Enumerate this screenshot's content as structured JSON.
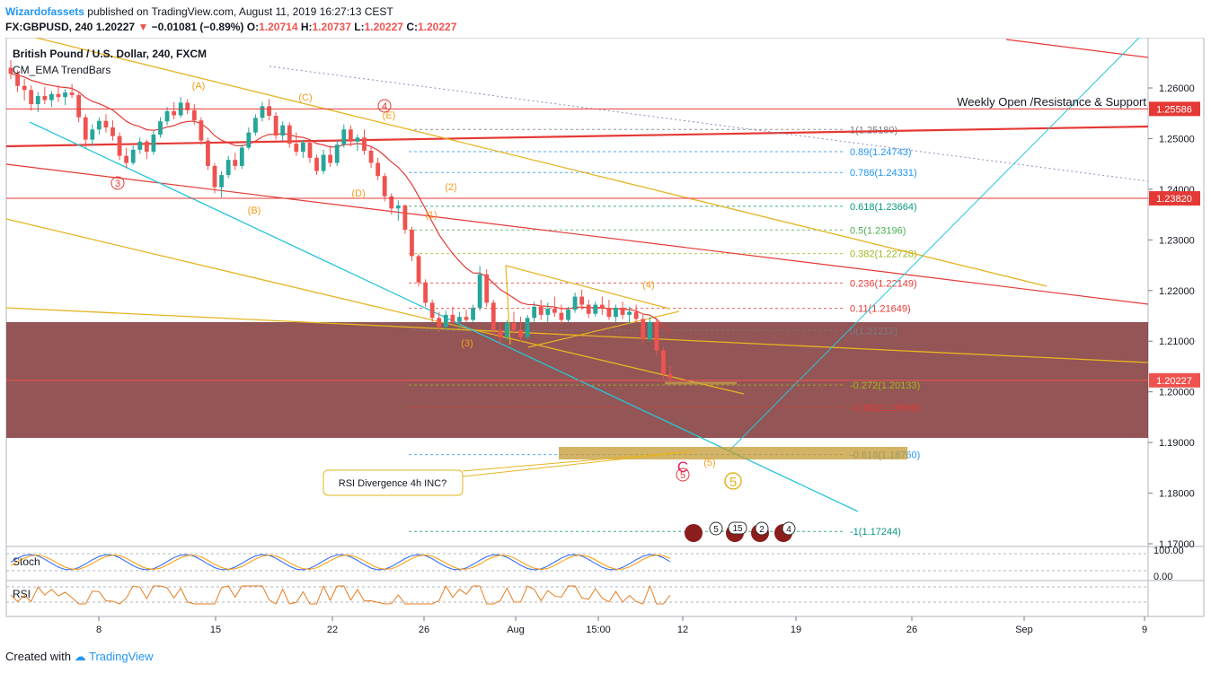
{
  "header": {
    "author": "Wizardofassets",
    "published_text": "published on TradingView.com, August 11, 2019 16:27:13 CEST",
    "symbol": "FX:GBPUSD, 240",
    "last": "1.20227",
    "change": "−0.01081 (−0.89%)",
    "ohlc": {
      "o_label": "O:",
      "o": "1.20714",
      "h_label": "H:",
      "h": "1.20737",
      "l_label": "L:",
      "l": "1.20227",
      "c_label": "C:",
      "c": "1.20227"
    }
  },
  "legend": {
    "title": "British Pound / U.S. Dollar, 240, FXCM",
    "indicator": "CM_EMA TrendBars"
  },
  "footer": {
    "created_with": "Created with",
    "brand": "TradingView"
  },
  "colors": {
    "bull": "#26a69a",
    "bear": "#ef5350",
    "ema": "#e53935",
    "wave": "#f59d1a",
    "trend": "#e6b422",
    "cyan": "#26c6da",
    "zone": "#7b2f2f"
  },
  "chart_data": {
    "type": "candlestick",
    "y_axis": {
      "min": 1.165,
      "max": 1.27,
      "ticks": [
        "1.26000",
        "1.25000",
        "1.24000",
        "1.23000",
        "1.22000",
        "1.21000",
        "1.20000",
        "1.19000",
        "1.18000",
        "1.17000"
      ]
    },
    "x_axis": {
      "ticks": [
        "8",
        "15",
        "22",
        "26",
        "Aug",
        "15:00",
        "12",
        "19",
        "26",
        "Sep",
        "9"
      ]
    },
    "price_labels": [
      {
        "value": 1.25586,
        "text": "1.25586",
        "color": "#e53935"
      },
      {
        "value": 1.2382,
        "text": "1.23820",
        "color": "#e53935"
      },
      {
        "value": 1.20227,
        "text": "1.20227",
        "color": "#ef5350"
      }
    ],
    "fib_levels": [
      {
        "value": 1.2518,
        "text": "1(1.25180)",
        "color": "#787b86"
      },
      {
        "value": 1.24743,
        "text": "0.89(1.24743)",
        "color": "#2196f3"
      },
      {
        "value": 1.24331,
        "text": "0.786(1.24331)",
        "color": "#2196f3"
      },
      {
        "value": 1.23664,
        "text": "0.618(1.23664)",
        "color": "#089981"
      },
      {
        "value": 1.23196,
        "text": "0.5(1.23196)",
        "color": "#4caf50"
      },
      {
        "value": 1.22728,
        "text": "0.382(1.22728)",
        "color": "#9cba1e"
      },
      {
        "value": 1.22149,
        "text": "0.236(1.22149)",
        "color": "#e53935"
      },
      {
        "value": 1.21649,
        "text": "0.11(1.21649)",
        "color": "#e53935"
      },
      {
        "value": 1.21212,
        "text": "0(1.21212)",
        "color": "#787b86"
      },
      {
        "value": 1.20133,
        "text": "-0.272(1.20133)",
        "color": "#9cba1e"
      },
      {
        "value": 1.19696,
        "text": "-0.382(1.19696)",
        "color": "#e53935"
      },
      {
        "value": 1.1876,
        "text": "-0.618(1.18760)",
        "color": "#2196f3"
      },
      {
        "value": 1.17244,
        "text": "-1(1.17244)",
        "color": "#089981"
      }
    ],
    "wave_labels": [
      "(A)",
      "(B)",
      "(C)",
      "(D)",
      "(E)",
      "(1)",
      "(2)",
      "(3)",
      "(4)",
      "(5)",
      "3",
      "4",
      "5",
      "5",
      "C"
    ],
    "annotations": {
      "weekly": "Weekly Open /Resistance & Support",
      "rsi_note": "RSI Divergence 4h INC?"
    },
    "events": [
      "5",
      "15",
      "2",
      "4"
    ],
    "candles": [
      {
        "o": 1.264,
        "h": 1.2655,
        "l": 1.2618,
        "c": 1.2628
      },
      {
        "o": 1.2628,
        "h": 1.2635,
        "l": 1.2592,
        "c": 1.2604
      },
      {
        "o": 1.2604,
        "h": 1.2618,
        "l": 1.2575,
        "c": 1.2596
      },
      {
        "o": 1.2596,
        "h": 1.2605,
        "l": 1.2555,
        "c": 1.2568
      },
      {
        "o": 1.2568,
        "h": 1.2592,
        "l": 1.2552,
        "c": 1.2584
      },
      {
        "o": 1.2584,
        "h": 1.2602,
        "l": 1.2568,
        "c": 1.2576
      },
      {
        "o": 1.2576,
        "h": 1.2594,
        "l": 1.2562,
        "c": 1.2588
      },
      {
        "o": 1.2588,
        "h": 1.2606,
        "l": 1.2572,
        "c": 1.2582
      },
      {
        "o": 1.2582,
        "h": 1.2598,
        "l": 1.2566,
        "c": 1.2591
      },
      {
        "o": 1.2591,
        "h": 1.2608,
        "l": 1.258,
        "c": 1.2586
      },
      {
        "o": 1.2586,
        "h": 1.259,
        "l": 1.2532,
        "c": 1.2542
      },
      {
        "o": 1.2542,
        "h": 1.2548,
        "l": 1.2482,
        "c": 1.2498
      },
      {
        "o": 1.2498,
        "h": 1.2528,
        "l": 1.2486,
        "c": 1.2518
      },
      {
        "o": 1.2518,
        "h": 1.2542,
        "l": 1.2508,
        "c": 1.2535
      },
      {
        "o": 1.2535,
        "h": 1.2548,
        "l": 1.2512,
        "c": 1.2522
      },
      {
        "o": 1.2522,
        "h": 1.2536,
        "l": 1.2496,
        "c": 1.2505
      },
      {
        "o": 1.2505,
        "h": 1.2512,
        "l": 1.2458,
        "c": 1.2466
      },
      {
        "o": 1.2466,
        "h": 1.2482,
        "l": 1.2442,
        "c": 1.2452
      },
      {
        "o": 1.2452,
        "h": 1.2486,
        "l": 1.2448,
        "c": 1.2478
      },
      {
        "o": 1.2478,
        "h": 1.2502,
        "l": 1.247,
        "c": 1.2494
      },
      {
        "o": 1.2494,
        "h": 1.2498,
        "l": 1.246,
        "c": 1.2474
      },
      {
        "o": 1.2474,
        "h": 1.2516,
        "l": 1.2468,
        "c": 1.2508
      },
      {
        "o": 1.2508,
        "h": 1.2542,
        "l": 1.2502,
        "c": 1.2534
      },
      {
        "o": 1.2534,
        "h": 1.2562,
        "l": 1.2526,
        "c": 1.2554
      },
      {
        "o": 1.2554,
        "h": 1.2572,
        "l": 1.2538,
        "c": 1.2546
      },
      {
        "o": 1.2546,
        "h": 1.2582,
        "l": 1.2541,
        "c": 1.2571
      },
      {
        "o": 1.2571,
        "h": 1.2578,
        "l": 1.2548,
        "c": 1.2556
      },
      {
        "o": 1.2556,
        "h": 1.2568,
        "l": 1.2528,
        "c": 1.2536
      },
      {
        "o": 1.2536,
        "h": 1.2542,
        "l": 1.2488,
        "c": 1.2496
      },
      {
        "o": 1.2496,
        "h": 1.2502,
        "l": 1.2438,
        "c": 1.2446
      },
      {
        "o": 1.2446,
        "h": 1.2452,
        "l": 1.2392,
        "c": 1.2404
      },
      {
        "o": 1.2404,
        "h": 1.2436,
        "l": 1.2384,
        "c": 1.2428
      },
      {
        "o": 1.2428,
        "h": 1.2466,
        "l": 1.2422,
        "c": 1.2458
      },
      {
        "o": 1.2458,
        "h": 1.2472,
        "l": 1.2438,
        "c": 1.2446
      },
      {
        "o": 1.2446,
        "h": 1.2488,
        "l": 1.244,
        "c": 1.2482
      },
      {
        "o": 1.2482,
        "h": 1.2522,
        "l": 1.2478,
        "c": 1.2512
      },
      {
        "o": 1.2512,
        "h": 1.2548,
        "l": 1.2506,
        "c": 1.2541
      },
      {
        "o": 1.2541,
        "h": 1.2572,
        "l": 1.2534,
        "c": 1.2564
      },
      {
        "o": 1.2564,
        "h": 1.2578,
        "l": 1.2536,
        "c": 1.2545
      },
      {
        "o": 1.2545,
        "h": 1.2552,
        "l": 1.2498,
        "c": 1.2506
      },
      {
        "o": 1.2506,
        "h": 1.2534,
        "l": 1.2496,
        "c": 1.2526
      },
      {
        "o": 1.2526,
        "h": 1.2532,
        "l": 1.2482,
        "c": 1.249
      },
      {
        "o": 1.249,
        "h": 1.2512,
        "l": 1.2466,
        "c": 1.2474
      },
      {
        "o": 1.2474,
        "h": 1.2498,
        "l": 1.2462,
        "c": 1.2492
      },
      {
        "o": 1.2492,
        "h": 1.2496,
        "l": 1.2452,
        "c": 1.2462
      },
      {
        "o": 1.2462,
        "h": 1.2468,
        "l": 1.2428,
        "c": 1.2436
      },
      {
        "o": 1.2436,
        "h": 1.2478,
        "l": 1.243,
        "c": 1.2468
      },
      {
        "o": 1.2468,
        "h": 1.2486,
        "l": 1.2444,
        "c": 1.2452
      },
      {
        "o": 1.2452,
        "h": 1.2496,
        "l": 1.2446,
        "c": 1.2488
      },
      {
        "o": 1.2488,
        "h": 1.2528,
        "l": 1.2482,
        "c": 1.2518
      },
      {
        "o": 1.2518,
        "h": 1.2526,
        "l": 1.2484,
        "c": 1.2494
      },
      {
        "o": 1.2494,
        "h": 1.2508,
        "l": 1.2476,
        "c": 1.2502
      },
      {
        "o": 1.2502,
        "h": 1.2518,
        "l": 1.2468,
        "c": 1.2476
      },
      {
        "o": 1.2476,
        "h": 1.2486,
        "l": 1.2442,
        "c": 1.2452
      },
      {
        "o": 1.2452,
        "h": 1.2462,
        "l": 1.2418,
        "c": 1.2426
      },
      {
        "o": 1.2426,
        "h": 1.2432,
        "l": 1.2376,
        "c": 1.2386
      },
      {
        "o": 1.2386,
        "h": 1.2392,
        "l": 1.235,
        "c": 1.2362
      },
      {
        "o": 1.2362,
        "h": 1.2378,
        "l": 1.2338,
        "c": 1.2368
      },
      {
        "o": 1.2368,
        "h": 1.237,
        "l": 1.2312,
        "c": 1.232
      },
      {
        "o": 1.232,
        "h": 1.2326,
        "l": 1.2258,
        "c": 1.2268
      },
      {
        "o": 1.2268,
        "h": 1.2272,
        "l": 1.2208,
        "c": 1.2216
      },
      {
        "o": 1.2216,
        "h": 1.2222,
        "l": 1.2168,
        "c": 1.2176
      },
      {
        "o": 1.2176,
        "h": 1.2182,
        "l": 1.2138,
        "c": 1.2146
      },
      {
        "o": 1.2146,
        "h": 1.2158,
        "l": 1.2118,
        "c": 1.2128
      },
      {
        "o": 1.2128,
        "h": 1.216,
        "l": 1.2122,
        "c": 1.2152
      },
      {
        "o": 1.2152,
        "h": 1.2168,
        "l": 1.2132,
        "c": 1.2138
      },
      {
        "o": 1.2138,
        "h": 1.2158,
        "l": 1.2124,
        "c": 1.2148
      },
      {
        "o": 1.2148,
        "h": 1.2162,
        "l": 1.2136,
        "c": 1.2142
      },
      {
        "o": 1.2142,
        "h": 1.2172,
        "l": 1.2138,
        "c": 1.2166
      },
      {
        "o": 1.2166,
        "h": 1.2248,
        "l": 1.216,
        "c": 1.2232
      },
      {
        "o": 1.2232,
        "h": 1.2242,
        "l": 1.2168,
        "c": 1.2176
      },
      {
        "o": 1.2176,
        "h": 1.2182,
        "l": 1.2112,
        "c": 1.2122
      },
      {
        "o": 1.2122,
        "h": 1.2136,
        "l": 1.2094,
        "c": 1.2108
      },
      {
        "o": 1.2108,
        "h": 1.2142,
        "l": 1.2102,
        "c": 1.2136
      },
      {
        "o": 1.2136,
        "h": 1.2158,
        "l": 1.2112,
        "c": 1.2122
      },
      {
        "o": 1.2122,
        "h": 1.2148,
        "l": 1.2098,
        "c": 1.2108
      },
      {
        "o": 1.2108,
        "h": 1.2152,
        "l": 1.2104,
        "c": 1.2146
      },
      {
        "o": 1.2146,
        "h": 1.2178,
        "l": 1.2138,
        "c": 1.2168
      },
      {
        "o": 1.2168,
        "h": 1.2182,
        "l": 1.2142,
        "c": 1.2152
      },
      {
        "o": 1.2152,
        "h": 1.2176,
        "l": 1.2136,
        "c": 1.2164
      },
      {
        "o": 1.2164,
        "h": 1.2188,
        "l": 1.2148,
        "c": 1.2156
      },
      {
        "o": 1.2156,
        "h": 1.2172,
        "l": 1.2134,
        "c": 1.2142
      },
      {
        "o": 1.2142,
        "h": 1.2168,
        "l": 1.2138,
        "c": 1.2162
      },
      {
        "o": 1.2162,
        "h": 1.2196,
        "l": 1.2156,
        "c": 1.2188
      },
      {
        "o": 1.2188,
        "h": 1.2202,
        "l": 1.2162,
        "c": 1.2172
      },
      {
        "o": 1.2172,
        "h": 1.2182,
        "l": 1.2146,
        "c": 1.2154
      },
      {
        "o": 1.2154,
        "h": 1.2178,
        "l": 1.2148,
        "c": 1.2172
      },
      {
        "o": 1.2172,
        "h": 1.2188,
        "l": 1.2152,
        "c": 1.2164
      },
      {
        "o": 1.2164,
        "h": 1.2182,
        "l": 1.2142,
        "c": 1.2148
      },
      {
        "o": 1.2148,
        "h": 1.2172,
        "l": 1.2138,
        "c": 1.2166
      },
      {
        "o": 1.2166,
        "h": 1.2178,
        "l": 1.2144,
        "c": 1.2152
      },
      {
        "o": 1.2152,
        "h": 1.2168,
        "l": 1.2132,
        "c": 1.2158
      },
      {
        "o": 1.2158,
        "h": 1.2172,
        "l": 1.2138,
        "c": 1.2144
      },
      {
        "o": 1.2144,
        "h": 1.2152,
        "l": 1.2096,
        "c": 1.2104
      },
      {
        "o": 1.2104,
        "h": 1.2148,
        "l": 1.2098,
        "c": 1.2138
      },
      {
        "o": 1.2138,
        "h": 1.2146,
        "l": 1.2072,
        "c": 1.2082
      },
      {
        "o": 1.2082,
        "h": 1.2088,
        "l": 1.2026,
        "c": 1.2035
      },
      {
        "o": 1.2035,
        "h": 1.2052,
        "l": 1.2018,
        "c": 1.2027
      }
    ],
    "subpanels": [
      "Stoch",
      "RSI"
    ],
    "stoch_axis": [
      "100.00",
      "0.00"
    ]
  }
}
